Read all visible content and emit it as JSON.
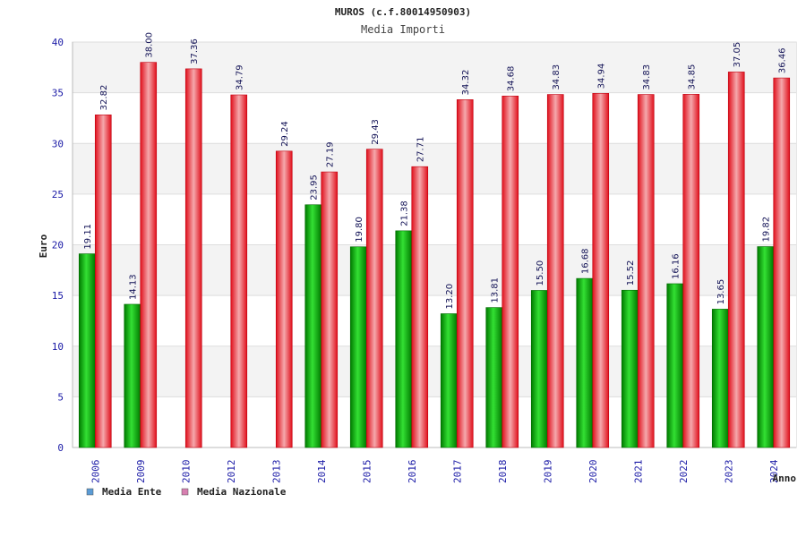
{
  "chart_data": {
    "type": "bar",
    "title": "MUROS (c.f.80014950903)",
    "subtitle": "Media Importi",
    "xlabel": "Anno",
    "ylabel": "Euro",
    "ylim": [
      0,
      40
    ],
    "yticks": [
      0,
      5,
      10,
      15,
      20,
      25,
      30,
      35,
      40
    ],
    "grid": true,
    "legend_position": "bottom-left",
    "categories": [
      "2006",
      "2009",
      "2010",
      "2012",
      "2013",
      "2014",
      "2015",
      "2016",
      "2017",
      "2018",
      "2019",
      "2020",
      "2021",
      "2022",
      "2023",
      "2024"
    ],
    "series": [
      {
        "name": "Media Ente",
        "color": "#00b400",
        "legend_color": "#5b9bd5",
        "values": [
          19.11,
          14.13,
          null,
          null,
          null,
          23.95,
          19.8,
          21.38,
          13.2,
          13.81,
          15.5,
          16.68,
          15.52,
          16.16,
          13.65,
          19.82
        ],
        "labels": [
          "19.11",
          "14.13",
          null,
          null,
          null,
          "23.95",
          "19.80",
          "21.38",
          "13.20",
          "13.81",
          "15.50",
          "16.68",
          "15.52",
          "16.16",
          "13.65",
          "19.82"
        ]
      },
      {
        "name": "Media Nazionale",
        "color": "#e8202a",
        "legend_color": "#d77fb0",
        "values": [
          32.82,
          38.0,
          37.36,
          34.79,
          29.24,
          27.19,
          29.43,
          27.71,
          34.32,
          34.68,
          34.83,
          34.94,
          34.83,
          34.85,
          37.05,
          36.46
        ],
        "labels": [
          "32.82",
          "38.00",
          "37.36",
          "34.79",
          "29.24",
          "27.19",
          "29.43",
          "27.71",
          "34.32",
          "34.68",
          "34.83",
          "34.94",
          "34.83",
          "34.85",
          "37.05",
          "36.46"
        ]
      }
    ]
  }
}
